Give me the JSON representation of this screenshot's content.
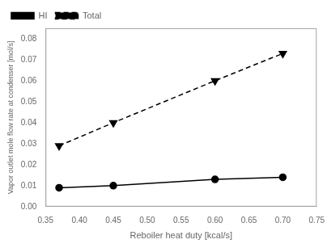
{
  "chart_data": {
    "type": "line",
    "x": [
      0.37,
      0.45,
      0.6,
      0.7
    ],
    "series": [
      {
        "name": "HI",
        "color": "#000000",
        "values": [
          0.009,
          0.01,
          0.013,
          0.014
        ],
        "marker": "circle",
        "line_style": "solid"
      },
      {
        "name": "Total",
        "color": "#000000",
        "values": [
          0.029,
          0.04,
          0.06,
          0.073
        ],
        "marker": "triangle-down",
        "line_style": "dashed"
      }
    ],
    "xlabel": "Reboiler heat duty [kcal/s]",
    "ylabel": "Vapor outlet mole flow rate at condenser [mol/s]",
    "xlim": [
      0.35,
      0.75
    ],
    "ylim": [
      0.0,
      0.085
    ],
    "xticks": [
      0.35,
      {
        "value": 0.4,
        "label": "0.40"
      },
      0.45,
      {
        "value": 0.5,
        "label": "0.50"
      },
      0.55,
      {
        "value": 0.6,
        "label": "0.60"
      },
      0.65,
      {
        "value": 0.7,
        "label": "0.70"
      },
      0.75
    ],
    "yticks": [
      {
        "value": 0.0,
        "label": "0.00"
      },
      0.01,
      0.02,
      0.03,
      0.04,
      0.05,
      0.06,
      0.07,
      0.08
    ],
    "grid": false,
    "legend": "upper left"
  }
}
